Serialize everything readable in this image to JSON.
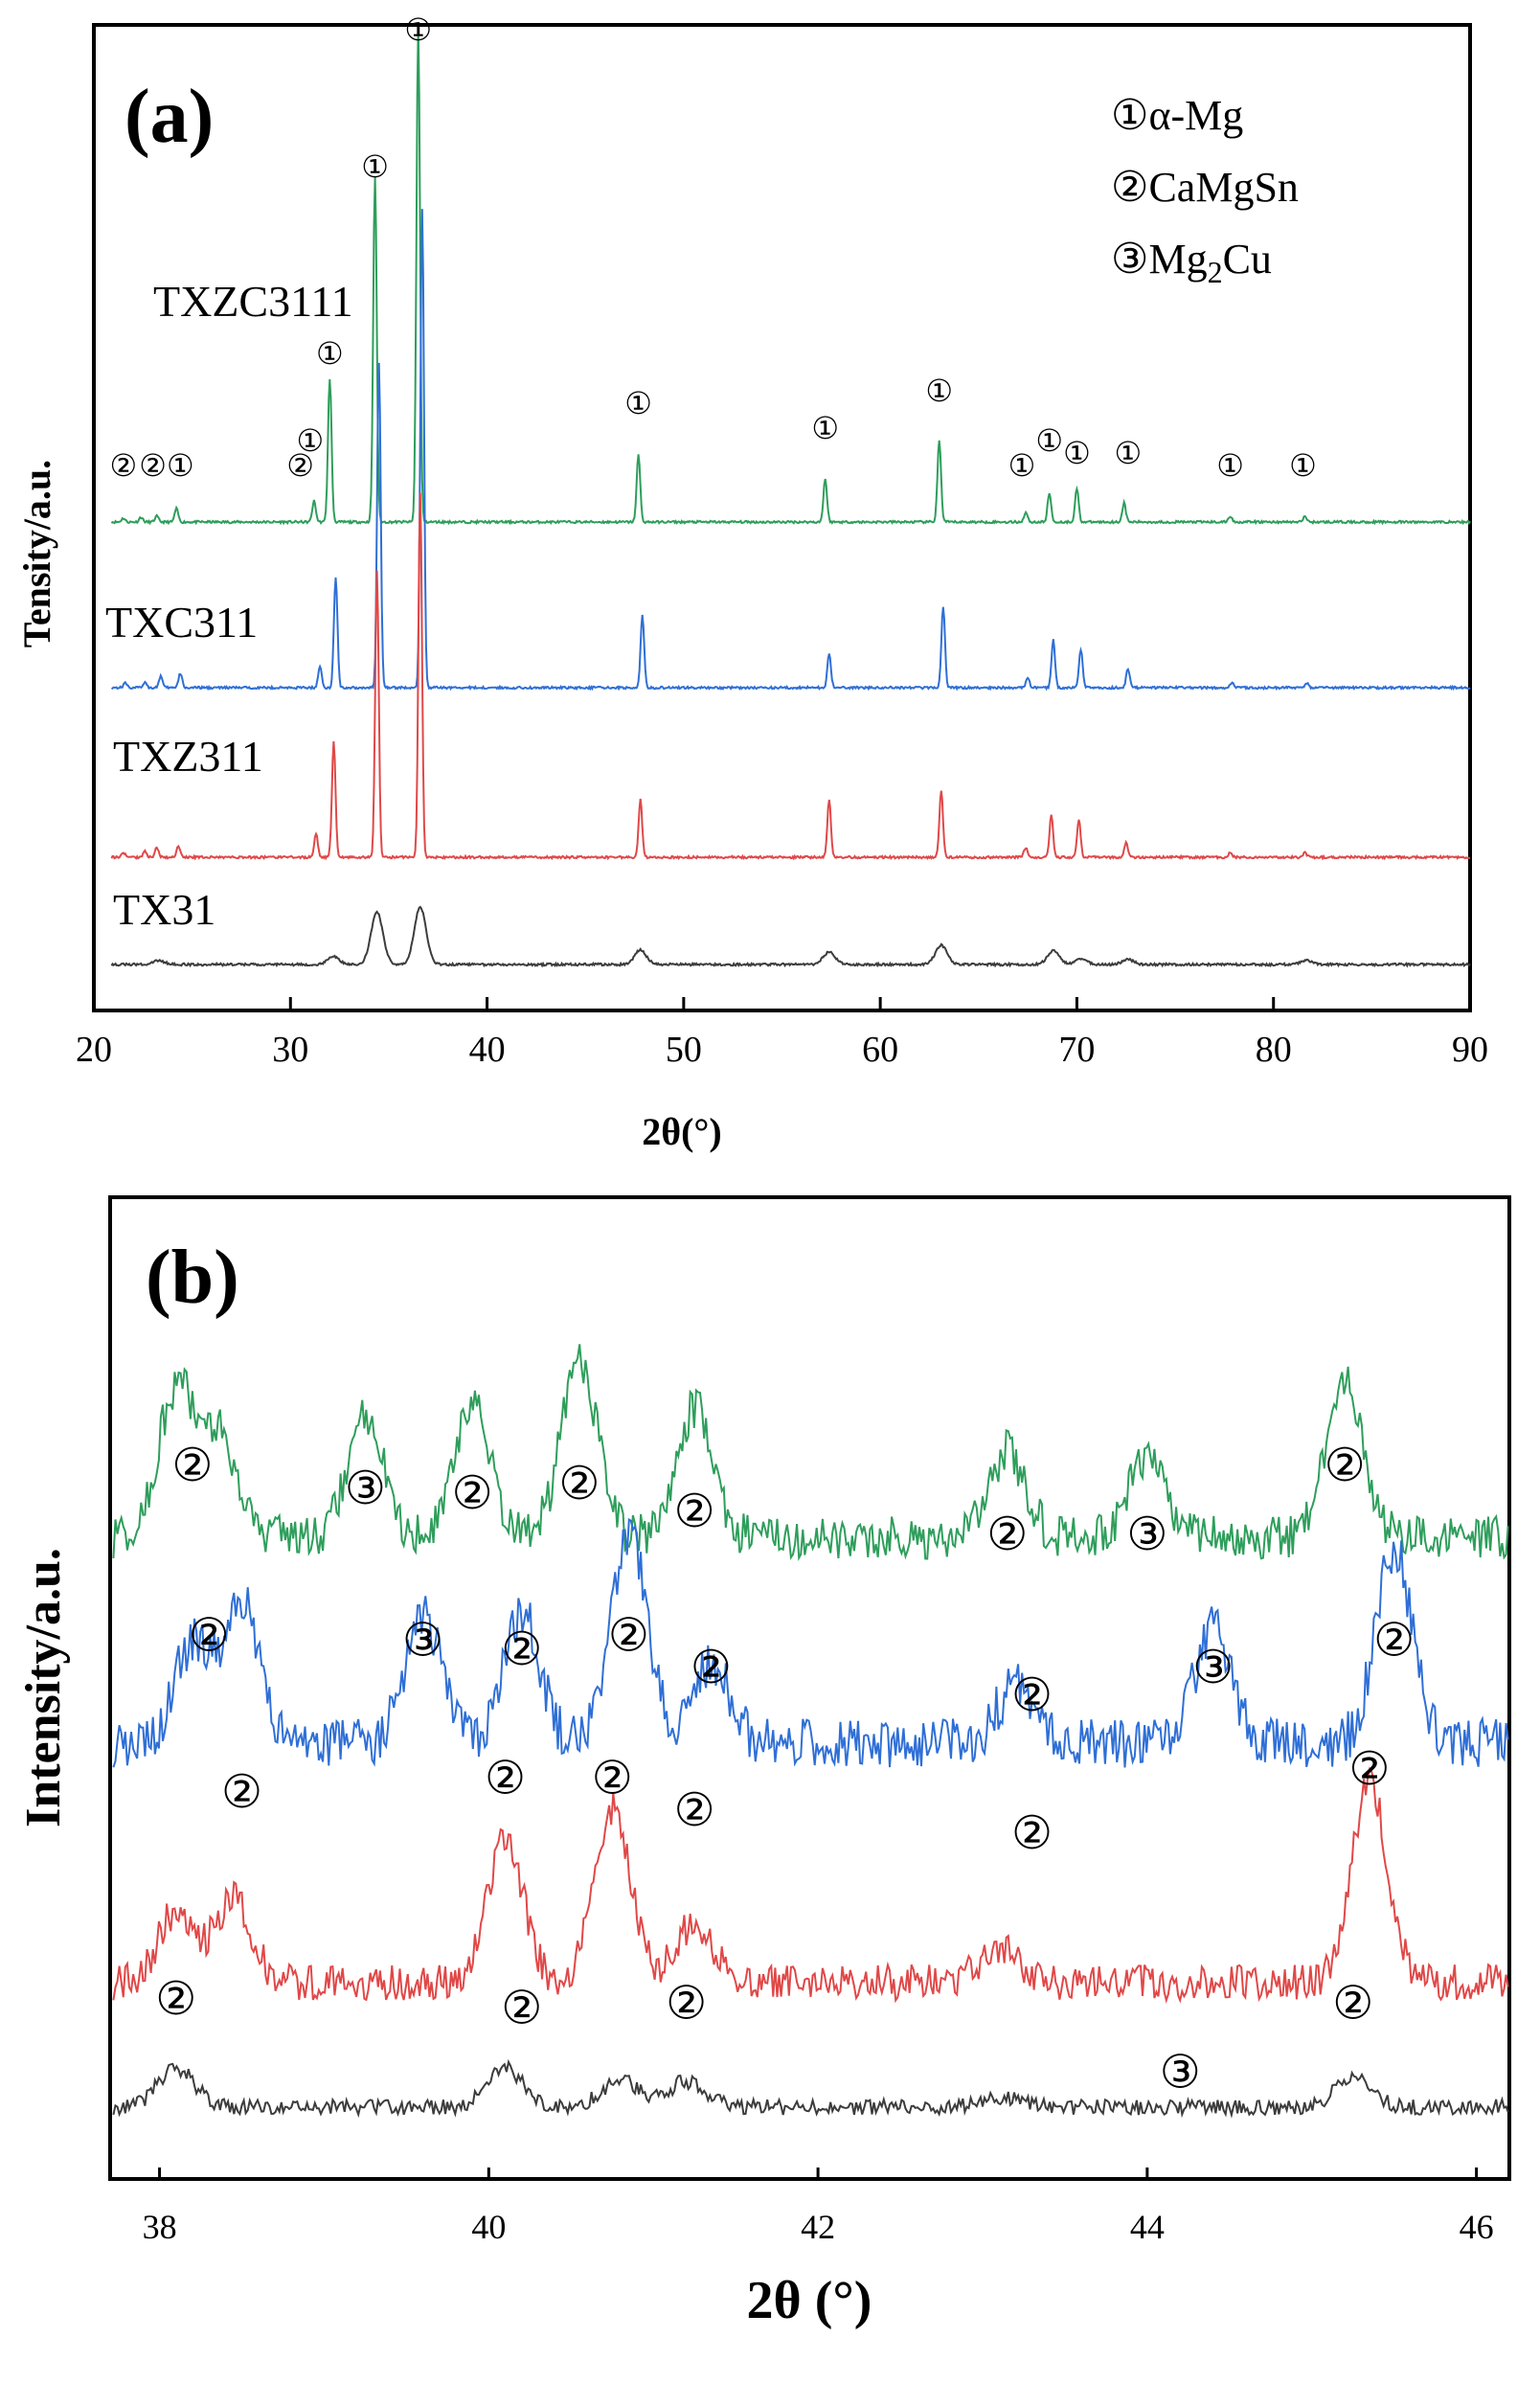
{
  "chart_data": [
    {
      "type": "line",
      "panel_label": "(a)",
      "xlabel": "2θ(°)",
      "ylabel": "Tensity/a.u.",
      "xlim": [
        20,
        90
      ],
      "xticks": [
        "20",
        "30",
        "40",
        "50",
        "60",
        "70",
        "80",
        "90"
      ],
      "series": [
        {
          "name": "TXZC3111",
          "color": "#2e9e5b",
          "peaks": [
            [
              21.5,
              4
            ],
            [
              22.4,
              5
            ],
            [
              23.2,
              6
            ],
            [
              24.2,
              14
            ],
            [
              31.2,
              22
            ],
            [
              32.0,
              150
            ],
            [
              34.3,
              360
            ],
            [
              36.5,
              520
            ],
            [
              47.7,
              70
            ],
            [
              57.2,
              45
            ],
            [
              63.0,
              85
            ],
            [
              67.4,
              10
            ],
            [
              68.6,
              30
            ],
            [
              70.0,
              35
            ],
            [
              72.4,
              20
            ],
            [
              77.8,
              6
            ],
            [
              81.6,
              6
            ]
          ]
        },
        {
          "name": "TXC311",
          "color": "#2f6fd6",
          "peaks": [
            [
              21.6,
              5
            ],
            [
              22.6,
              6
            ],
            [
              23.4,
              12
            ],
            [
              24.4,
              15
            ],
            [
              31.5,
              22
            ],
            [
              32.3,
              115
            ],
            [
              34.5,
              340
            ],
            [
              36.7,
              500
            ],
            [
              47.9,
              75
            ],
            [
              57.4,
              35
            ],
            [
              63.2,
              85
            ],
            [
              67.5,
              10
            ],
            [
              68.8,
              50
            ],
            [
              70.2,
              40
            ],
            [
              72.6,
              20
            ],
            [
              77.9,
              5
            ],
            [
              81.7,
              5
            ]
          ]
        },
        {
          "name": "TXZ311",
          "color": "#e04848",
          "peaks": [
            [
              21.5,
              5
            ],
            [
              22.6,
              6
            ],
            [
              23.2,
              10
            ],
            [
              24.3,
              12
            ],
            [
              31.3,
              25
            ],
            [
              32.2,
              120
            ],
            [
              34.4,
              300
            ],
            [
              36.6,
              380
            ],
            [
              47.8,
              60
            ],
            [
              57.4,
              60
            ],
            [
              63.1,
              70
            ],
            [
              67.4,
              10
            ],
            [
              68.7,
              45
            ],
            [
              70.1,
              40
            ],
            [
              72.5,
              15
            ],
            [
              77.8,
              5
            ],
            [
              81.6,
              5
            ]
          ]
        },
        {
          "name": "TX31",
          "color": "#3c3c3c",
          "peaks": [
            [
              23.3,
              4
            ],
            [
              32.2,
              8
            ],
            [
              34.4,
              55
            ],
            [
              36.6,
              60
            ],
            [
              47.8,
              15
            ],
            [
              57.4,
              13
            ],
            [
              63.1,
              20
            ],
            [
              68.8,
              14
            ],
            [
              70.2,
              6
            ],
            [
              72.6,
              5
            ],
            [
              81.7,
              4
            ]
          ]
        }
      ],
      "peak_markers": [
        {
          "x": 21.5,
          "y": 1,
          "label": "②"
        },
        {
          "x": 23.0,
          "y": 1,
          "label": "②"
        },
        {
          "x": 24.4,
          "y": 1,
          "label": "①"
        },
        {
          "x": 30.5,
          "y": 1,
          "label": "②"
        },
        {
          "x": 31.0,
          "y": 3,
          "label": "①"
        },
        {
          "x": 32.0,
          "y": 10,
          "label": "①"
        },
        {
          "x": 34.3,
          "y": 25,
          "label": "①"
        },
        {
          "x": 36.5,
          "y": 36,
          "label": "①"
        },
        {
          "x": 47.7,
          "y": 6,
          "label": "①"
        },
        {
          "x": 57.2,
          "y": 4,
          "label": "①"
        },
        {
          "x": 63.0,
          "y": 7,
          "label": "①"
        },
        {
          "x": 67.2,
          "y": 1,
          "label": "①"
        },
        {
          "x": 68.6,
          "y": 3,
          "label": "①"
        },
        {
          "x": 70.0,
          "y": 2,
          "label": "①"
        },
        {
          "x": 72.6,
          "y": 2,
          "label": "①"
        },
        {
          "x": 77.8,
          "y": 1,
          "label": "①"
        },
        {
          "x": 81.5,
          "y": 1,
          "label": "①"
        }
      ],
      "legend": [
        "①α-Mg",
        "②CaMgSn",
        "③Mg",
        "2",
        "Cu"
      ],
      "grid": false,
      "legend_position": "top-right"
    },
    {
      "type": "line",
      "panel_label": "(b)",
      "xlabel": "2θ (°)",
      "ylabel": "Intensity/a.u.",
      "xlim": [
        37.7,
        46.2
      ],
      "xticks": [
        "38",
        "40",
        "42",
        "44",
        "46"
      ],
      "series": [
        {
          "name": "TXZC3111",
          "color": "#2e9e5b",
          "peaks": [
            [
              38.1,
              1.0
            ],
            [
              38.35,
              0.7
            ],
            [
              39.25,
              0.85
            ],
            [
              39.9,
              0.95
            ],
            [
              40.55,
              1.2
            ],
            [
              41.25,
              0.9
            ],
            [
              43.15,
              0.6
            ],
            [
              44.0,
              0.55
            ],
            [
              45.2,
              1.1
            ]
          ]
        },
        {
          "name": "TXC311",
          "color": "#2f6fd6",
          "peaks": [
            [
              38.2,
              0.6
            ],
            [
              38.5,
              0.85
            ],
            [
              39.6,
              0.8
            ],
            [
              40.2,
              0.8
            ],
            [
              40.85,
              1.3
            ],
            [
              41.35,
              0.5
            ],
            [
              43.2,
              0.35
            ],
            [
              44.4,
              0.7
            ],
            [
              45.5,
              1.2
            ]
          ]
        },
        {
          "name": "TXZ311",
          "color": "#e04848",
          "peaks": [
            [
              38.1,
              0.6
            ],
            [
              38.45,
              0.7
            ],
            [
              40.1,
              1.2
            ],
            [
              40.75,
              1.45
            ],
            [
              41.25,
              0.5
            ],
            [
              43.1,
              0.3
            ],
            [
              45.35,
              1.65
            ]
          ]
        },
        {
          "name": "TX31",
          "color": "#3c3c3c",
          "peaks": [
            [
              38.1,
              0.3
            ],
            [
              40.1,
              0.3
            ],
            [
              40.8,
              0.22
            ],
            [
              41.2,
              0.2
            ],
            [
              43.1,
              0.08
            ],
            [
              45.25,
              0.22
            ]
          ]
        }
      ],
      "peak_markers": [
        {
          "x": 38.2,
          "y": 15.5,
          "label": "②"
        },
        {
          "x": 39.25,
          "y": 15.0,
          "label": "③"
        },
        {
          "x": 39.9,
          "y": 14.9,
          "label": "②"
        },
        {
          "x": 40.55,
          "y": 15.1,
          "label": "②"
        },
        {
          "x": 41.25,
          "y": 14.5,
          "label": "②"
        },
        {
          "x": 43.15,
          "y": 14.0,
          "label": "②"
        },
        {
          "x": 44.0,
          "y": 14.0,
          "label": "③"
        },
        {
          "x": 45.2,
          "y": 15.5,
          "label": "②"
        },
        {
          "x": 38.3,
          "y": 11.8,
          "label": "②"
        },
        {
          "x": 39.6,
          "y": 11.7,
          "label": "③"
        },
        {
          "x": 40.2,
          "y": 11.5,
          "label": "②"
        },
        {
          "x": 40.85,
          "y": 11.8,
          "label": "②"
        },
        {
          "x": 41.35,
          "y": 11.1,
          "label": "②"
        },
        {
          "x": 43.3,
          "y": 10.5,
          "label": "②"
        },
        {
          "x": 44.4,
          "y": 11.1,
          "label": "③"
        },
        {
          "x": 45.5,
          "y": 11.7,
          "label": "②"
        },
        {
          "x": 38.5,
          "y": 8.4,
          "label": "②"
        },
        {
          "x": 40.1,
          "y": 8.7,
          "label": "②"
        },
        {
          "x": 40.75,
          "y": 8.7,
          "label": "②"
        },
        {
          "x": 41.25,
          "y": 8.0,
          "label": "②"
        },
        {
          "x": 43.3,
          "y": 7.5,
          "label": "②"
        },
        {
          "x": 45.35,
          "y": 8.9,
          "label": "②"
        },
        {
          "x": 38.1,
          "y": 3.9,
          "label": "②"
        },
        {
          "x": 40.2,
          "y": 3.7,
          "label": "②"
        },
        {
          "x": 41.2,
          "y": 3.8,
          "label": "②"
        },
        {
          "x": 44.2,
          "y": 2.3,
          "label": "③"
        },
        {
          "x": 45.25,
          "y": 3.8,
          "label": "②"
        }
      ],
      "grid": false
    }
  ]
}
